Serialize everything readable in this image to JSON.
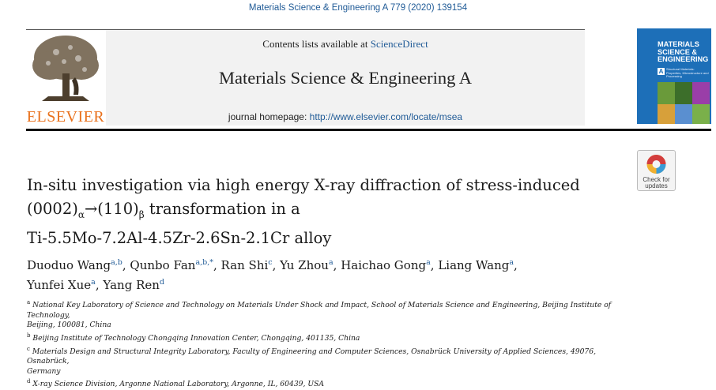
{
  "citation": "Materials Science & Engineering A 779 (2020) 139154",
  "masthead": {
    "contents_prefix": "Contents lists available at ",
    "contents_link": "ScienceDirect",
    "journal_title": "Materials Science & Engineering A",
    "homepage_prefix": "journal homepage: ",
    "homepage_link": "http://www.elsevier.com/locate/msea",
    "publisher": "ELSEVIER"
  },
  "cover": {
    "title_lines": [
      "MATERIALS",
      "SCIENCE &",
      "ENGINEERING"
    ],
    "letter": "A",
    "subtitle": "Structural Materials: Properties, Microstructure and Processing"
  },
  "crossmark": {
    "line1": "Check for",
    "line2": "updates"
  },
  "article": {
    "title_line1": "In-situ investigation via high energy X-ray diffraction of stress-induced",
    "title_l2_a": "(0002)",
    "title_l2_sub1": "α",
    "title_l2_b": "→(110)",
    "title_l2_sub2": "β",
    "title_l2_c": " transformation in a",
    "title_line3": "Ti-5.5Mo-7.2Al-4.5Zr-2.6Sn-2.1Cr alloy"
  },
  "authors": [
    {
      "name": "Duoduo Wang",
      "sup": "a,b",
      "sep": ", "
    },
    {
      "name": "Qunbo Fan",
      "sup": "a,b,*",
      "sep": ", "
    },
    {
      "name": "Ran Shi",
      "sup": "c",
      "sep": ", "
    },
    {
      "name": "Yu Zhou",
      "sup": "a",
      "sep": ", "
    },
    {
      "name": "Haichao Gong",
      "sup": "a",
      "sep": ", "
    },
    {
      "name": "Liang Wang",
      "sup": "a",
      "sep": ","
    },
    {
      "name": "Yunfei Xue",
      "sup": "a",
      "sep": ", "
    },
    {
      "name": "Yang Ren",
      "sup": "d",
      "sep": ""
    }
  ],
  "affiliations": [
    {
      "label": "a",
      "line1": "National Key Laboratory of Science and Technology on Materials Under Shock and Impact, School of Materials Science and Engineering, Beijing Institute of Technology,",
      "line2": "Beijing, 100081, China"
    },
    {
      "label": "b",
      "line1": "Beijing Institute of Technology Chongqing Innovation Center, Chongqing, 401135, China",
      "line2": ""
    },
    {
      "label": "c",
      "line1": "Materials Design and Structural Integrity Laboratory, Faculty of Engineering and Computer Sciences, Osnabrück University of Applied Sciences, 49076, Osnabrück,",
      "line2": "Germany"
    },
    {
      "label": "d",
      "line1": "X-ray Science Division, Argonne National Laboratory, Argonne, IL, 60439, USA",
      "line2": ""
    }
  ],
  "colors": {
    "link": "#1f5a96",
    "elsevier_orange": "#e9711c",
    "cover_blue": "#1d6fb8"
  }
}
